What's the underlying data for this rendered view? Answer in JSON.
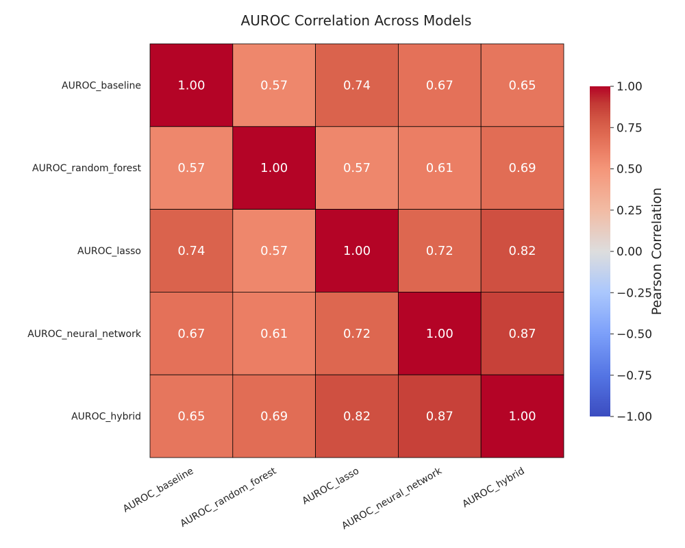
{
  "chart_data": {
    "type": "heatmap",
    "title": "AUROC Correlation Across Models",
    "xlabel": "",
    "ylabel": "",
    "row_labels": [
      "AUROC_baseline",
      "AUROC_random_forest",
      "AUROC_lasso",
      "AUROC_neural_network",
      "AUROC_hybrid"
    ],
    "col_labels": [
      "AUROC_baseline",
      "AUROC_random_forest",
      "AUROC_lasso",
      "AUROC_neural_network",
      "AUROC_hybrid"
    ],
    "values": [
      [
        1.0,
        0.57,
        0.74,
        0.67,
        0.65
      ],
      [
        0.57,
        1.0,
        0.57,
        0.61,
        0.69
      ],
      [
        0.74,
        0.57,
        1.0,
        0.72,
        0.82
      ],
      [
        0.67,
        0.61,
        0.72,
        1.0,
        0.87
      ],
      [
        0.65,
        0.69,
        0.82,
        0.87,
        1.0
      ]
    ],
    "value_format": "2 decimals",
    "colormap": "coolwarm",
    "vmin": -1.0,
    "vmax": 1.0,
    "colorbar": {
      "label": "Pearson Correlation",
      "ticks": [
        1.0,
        0.75,
        0.5,
        0.25,
        0.0,
        -0.25,
        -0.5,
        -0.75,
        -1.0
      ],
      "tick_labels": [
        "1.00",
        "0.75",
        "0.50",
        "0.25",
        "0.00",
        "−0.25",
        "−0.50",
        "−0.75",
        "−1.00"
      ],
      "placement": "right"
    },
    "grid": false,
    "cell_border_color": "#000000"
  }
}
